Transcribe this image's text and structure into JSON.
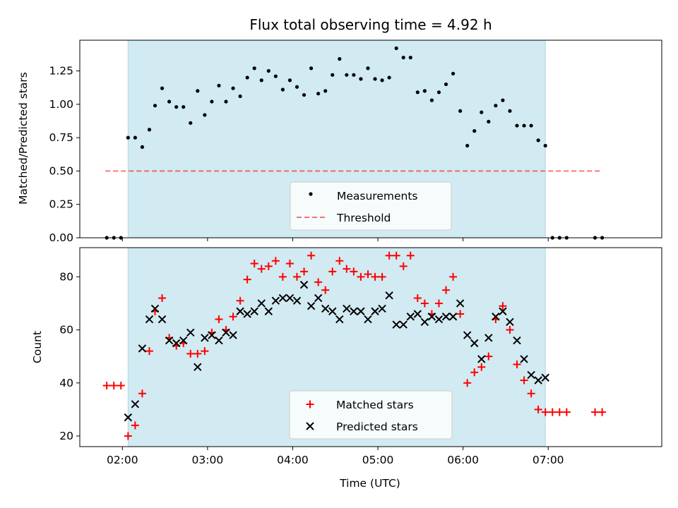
{
  "title": "Flux total observing time = 4.92 h",
  "colors": {
    "shade": "#add8e6",
    "threshold": "#ff0000",
    "matched": "#ff0000",
    "predicted": "#000000",
    "measurements": "#000000"
  },
  "chart_data": [
    {
      "type": "scatter",
      "ylabel": "Matched/Predicted stars",
      "ylim": [
        0,
        1.48
      ],
      "yticks": [
        "0.00",
        "0.25",
        "0.50",
        "0.75",
        "1.00",
        "1.25"
      ],
      "legend": {
        "placement": "lower-center",
        "entries": [
          "Measurements",
          "Threshold"
        ]
      },
      "shaded_interval": [
        "02:04",
        "06:58"
      ],
      "threshold": {
        "value": 0.5,
        "x_range": [
          "01:48",
          "07:38"
        ]
      },
      "series": [
        {
          "name": "Measurements",
          "marker": "dot",
          "points": [
            [
              "01:49",
              0.0
            ],
            [
              "01:54",
              0.0
            ],
            [
              "01:59",
              0.0
            ],
            [
              "02:04",
              0.75
            ],
            [
              "02:09",
              0.75
            ],
            [
              "02:14",
              0.68
            ],
            [
              "02:19",
              0.81
            ],
            [
              "02:23",
              0.99
            ],
            [
              "02:28",
              1.12
            ],
            [
              "02:33",
              1.02
            ],
            [
              "02:38",
              0.98
            ],
            [
              "02:43",
              0.98
            ],
            [
              "02:48",
              0.86
            ],
            [
              "02:53",
              1.1
            ],
            [
              "02:58",
              0.92
            ],
            [
              "03:03",
              1.02
            ],
            [
              "03:08",
              1.14
            ],
            [
              "03:13",
              1.02
            ],
            [
              "03:18",
              1.12
            ],
            [
              "03:23",
              1.06
            ],
            [
              "03:28",
              1.2
            ],
            [
              "03:33",
              1.27
            ],
            [
              "03:38",
              1.18
            ],
            [
              "03:43",
              1.25
            ],
            [
              "03:48",
              1.21
            ],
            [
              "03:53",
              1.11
            ],
            [
              "03:58",
              1.18
            ],
            [
              "04:03",
              1.13
            ],
            [
              "04:08",
              1.07
            ],
            [
              "04:13",
              1.27
            ],
            [
              "04:18",
              1.08
            ],
            [
              "04:23",
              1.1
            ],
            [
              "04:28",
              1.22
            ],
            [
              "04:33",
              1.34
            ],
            [
              "04:38",
              1.22
            ],
            [
              "04:43",
              1.22
            ],
            [
              "04:48",
              1.19
            ],
            [
              "04:53",
              1.27
            ],
            [
              "04:58",
              1.19
            ],
            [
              "05:03",
              1.18
            ],
            [
              "05:08",
              1.2
            ],
            [
              "05:13",
              1.42
            ],
            [
              "05:18",
              1.35
            ],
            [
              "05:23",
              1.35
            ],
            [
              "05:28",
              1.09
            ],
            [
              "05:33",
              1.1
            ],
            [
              "05:38",
              1.03
            ],
            [
              "05:43",
              1.09
            ],
            [
              "05:48",
              1.15
            ],
            [
              "05:53",
              1.23
            ],
            [
              "05:58",
              0.95
            ],
            [
              "06:03",
              0.69
            ],
            [
              "06:08",
              0.8
            ],
            [
              "06:13",
              0.94
            ],
            [
              "06:18",
              0.87
            ],
            [
              "06:23",
              0.99
            ],
            [
              "06:28",
              1.03
            ],
            [
              "06:33",
              0.95
            ],
            [
              "06:38",
              0.84
            ],
            [
              "06:43",
              0.84
            ],
            [
              "06:48",
              0.84
            ],
            [
              "06:53",
              0.73
            ],
            [
              "06:58",
              0.69
            ],
            [
              "07:03",
              0.0
            ],
            [
              "07:08",
              0.0
            ],
            [
              "07:13",
              0.0
            ],
            [
              "07:33",
              0.0
            ],
            [
              "07:38",
              0.0
            ]
          ]
        }
      ]
    },
    {
      "type": "scatter",
      "xlabel": "Time (UTC)",
      "ylabel": "Count",
      "xlim": [
        "01:30",
        "08:20"
      ],
      "ylim": [
        16,
        91
      ],
      "xticks": [
        "02:00",
        "03:00",
        "04:00",
        "05:00",
        "06:00",
        "07:00"
      ],
      "yticks": [
        "20",
        "40",
        "60",
        "80"
      ],
      "legend": {
        "placement": "lower-center",
        "entries": [
          "Matched stars",
          "Predicted stars"
        ]
      },
      "shaded_interval": [
        "02:04",
        "06:58"
      ],
      "series": [
        {
          "name": "Matched stars",
          "marker": "plus",
          "points": [
            [
              "01:49",
              39
            ],
            [
              "01:54",
              39
            ],
            [
              "01:59",
              39
            ],
            [
              "02:04",
              20
            ],
            [
              "02:09",
              24
            ],
            [
              "02:14",
              36
            ],
            [
              "02:19",
              52
            ],
            [
              "02:23",
              67
            ],
            [
              "02:28",
              72
            ],
            [
              "02:33",
              57
            ],
            [
              "02:38",
              54
            ],
            [
              "02:43",
              55
            ],
            [
              "02:48",
              51
            ],
            [
              "02:53",
              51
            ],
            [
              "02:58",
              52
            ],
            [
              "03:03",
              59
            ],
            [
              "03:08",
              64
            ],
            [
              "03:13",
              60
            ],
            [
              "03:18",
              65
            ],
            [
              "03:23",
              71
            ],
            [
              "03:28",
              79
            ],
            [
              "03:33",
              85
            ],
            [
              "03:38",
              83
            ],
            [
              "03:43",
              84
            ],
            [
              "03:48",
              86
            ],
            [
              "03:53",
              80
            ],
            [
              "03:58",
              85
            ],
            [
              "04:03",
              80
            ],
            [
              "04:08",
              82
            ],
            [
              "04:13",
              88
            ],
            [
              "04:18",
              78
            ],
            [
              "04:23",
              75
            ],
            [
              "04:28",
              82
            ],
            [
              "04:33",
              86
            ],
            [
              "04:38",
              83
            ],
            [
              "04:43",
              82
            ],
            [
              "04:48",
              80
            ],
            [
              "04:53",
              81
            ],
            [
              "04:58",
              80
            ],
            [
              "05:03",
              80
            ],
            [
              "05:08",
              88
            ],
            [
              "05:13",
              88
            ],
            [
              "05:18",
              84
            ],
            [
              "05:23",
              88
            ],
            [
              "05:28",
              72
            ],
            [
              "05:33",
              70
            ],
            [
              "05:38",
              66
            ],
            [
              "05:43",
              70
            ],
            [
              "05:48",
              75
            ],
            [
              "05:53",
              80
            ],
            [
              "05:58",
              66
            ],
            [
              "06:03",
              40
            ],
            [
              "06:08",
              44
            ],
            [
              "06:13",
              46
            ],
            [
              "06:18",
              50
            ],
            [
              "06:23",
              64
            ],
            [
              "06:28",
              69
            ],
            [
              "06:33",
              60
            ],
            [
              "06:38",
              47
            ],
            [
              "06:43",
              41
            ],
            [
              "06:48",
              36
            ],
            [
              "06:53",
              30
            ],
            [
              "06:58",
              29
            ],
            [
              "07:03",
              29
            ],
            [
              "07:08",
              29
            ],
            [
              "07:13",
              29
            ],
            [
              "07:33",
              29
            ],
            [
              "07:38",
              29
            ]
          ]
        },
        {
          "name": "Predicted stars",
          "marker": "x",
          "points": [
            [
              "02:04",
              27
            ],
            [
              "02:09",
              32
            ],
            [
              "02:14",
              53
            ],
            [
              "02:19",
              64
            ],
            [
              "02:23",
              68
            ],
            [
              "02:28",
              64
            ],
            [
              "02:33",
              56
            ],
            [
              "02:38",
              55
            ],
            [
              "02:43",
              56
            ],
            [
              "02:48",
              59
            ],
            [
              "02:53",
              46
            ],
            [
              "02:58",
              57
            ],
            [
              "03:03",
              58
            ],
            [
              "03:08",
              56
            ],
            [
              "03:13",
              59
            ],
            [
              "03:18",
              58
            ],
            [
              "03:23",
              67
            ],
            [
              "03:28",
              66
            ],
            [
              "03:33",
              67
            ],
            [
              "03:38",
              70
            ],
            [
              "03:43",
              67
            ],
            [
              "03:48",
              71
            ],
            [
              "03:53",
              72
            ],
            [
              "03:58",
              72
            ],
            [
              "04:03",
              71
            ],
            [
              "04:08",
              77
            ],
            [
              "04:13",
              69
            ],
            [
              "04:18",
              72
            ],
            [
              "04:23",
              68
            ],
            [
              "04:28",
              67
            ],
            [
              "04:33",
              64
            ],
            [
              "04:38",
              68
            ],
            [
              "04:43",
              67
            ],
            [
              "04:48",
              67
            ],
            [
              "04:53",
              64
            ],
            [
              "04:58",
              67
            ],
            [
              "05:03",
              68
            ],
            [
              "05:08",
              73
            ],
            [
              "05:13",
              62
            ],
            [
              "05:18",
              62
            ],
            [
              "05:23",
              65
            ],
            [
              "05:28",
              66
            ],
            [
              "05:33",
              63
            ],
            [
              "05:38",
              65
            ],
            [
              "05:43",
              64
            ],
            [
              "05:48",
              65
            ],
            [
              "05:53",
              65
            ],
            [
              "05:58",
              70
            ],
            [
              "06:03",
              58
            ],
            [
              "06:08",
              55
            ],
            [
              "06:13",
              49
            ],
            [
              "06:18",
              57
            ],
            [
              "06:23",
              65
            ],
            [
              "06:28",
              67
            ],
            [
              "06:33",
              63
            ],
            [
              "06:38",
              56
            ],
            [
              "06:43",
              49
            ],
            [
              "06:48",
              43
            ],
            [
              "06:53",
              41
            ],
            [
              "06:58",
              42
            ]
          ]
        }
      ]
    }
  ]
}
